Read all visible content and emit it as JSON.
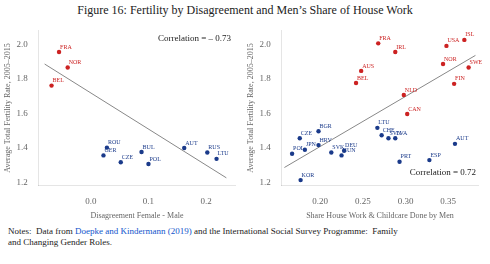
{
  "title": "Figure 16: Fertility by Disagreement and Men’s Share of House Work",
  "notes": [
    {
      "text": "Notes:  Data from "
    },
    {
      "text": "Doepke and Kindermann (2019)",
      "color": "#1155cc"
    },
    {
      "text": " and the International Social Survey Programme:  Family\nand Changing Gender Roles."
    }
  ],
  "chart_data": [
    {
      "type": "scatter",
      "xlabel": "Disagreement Female - Male",
      "ylabel": "Average Total Fertility Rate, 2005–2015",
      "xlim": [
        -0.09,
        0.25
      ],
      "ylim": [
        1.18,
        2.08
      ],
      "xticks": [
        {
          "value": 0.0,
          "label": "0.0"
        },
        0.1,
        0.2
      ],
      "yticks": [
        1.2,
        1.4,
        1.6,
        1.8,
        {
          "value": 2.0,
          "label": "2.0"
        }
      ],
      "grid": false,
      "annotations": [
        {
          "text": "Correlation = – 0.73"
        }
      ],
      "series": [
        {
          "type": "line",
          "color": "#888888",
          "x": [
            -0.08,
            0.235
          ],
          "values": [
            1.885,
            1.225
          ]
        },
        {
          "color": "#cc2222",
          "x": [
            -0.055,
            -0.04,
            -0.068
          ],
          "values": [
            1.955,
            1.865,
            1.76
          ],
          "labels": [
            "FRA",
            "NOR",
            "BEL"
          ]
        },
        {
          "color": "#1a3a8a",
          "x": [
            0.028,
            0.022,
            0.052,
            0.088,
            0.1,
            0.162,
            0.202,
            0.218
          ],
          "values": [
            1.4,
            1.355,
            1.315,
            1.375,
            1.305,
            1.398,
            1.372,
            1.335
          ],
          "labels": [
            "ROU",
            "GER",
            "CZE",
            "BUL",
            "POL",
            "AUT",
            "RUS",
            "LTU"
          ]
        }
      ]
    },
    {
      "type": "scatter",
      "xlabel": "Share House Work & Childcare Done by Men",
      "ylabel": "Average Total Fertility Rate, 2005–2015",
      "xlim": [
        0.155,
        0.385
      ],
      "ylim": [
        1.18,
        2.08
      ],
      "xticks": [
        {
          "value": 0.2,
          "label": "0.20"
        },
        {
          "value": 0.25,
          "label": "0.25"
        },
        {
          "value": 0.3,
          "label": "0.30"
        },
        {
          "value": 0.35,
          "label": "0.35"
        }
      ],
      "yticks": [
        1.2,
        1.4,
        1.6,
        1.8,
        {
          "value": 2.0,
          "label": "2.0"
        }
      ],
      "grid": false,
      "annotations": [
        {
          "text": "Correlation = 0.72"
        }
      ],
      "series": [
        {
          "type": "line",
          "color": "#888888",
          "x": [
            0.158,
            0.382
          ],
          "values": [
            1.285,
            1.935
          ]
        },
        {
          "color": "#cc2222",
          "x": [
            0.268,
            0.288,
            0.369,
            0.348,
            0.344,
            0.374,
            0.357,
            0.248,
            0.242,
            0.298,
            0.302
          ],
          "values": [
            2.005,
            1.955,
            2.025,
            1.99,
            1.885,
            1.865,
            1.77,
            1.845,
            1.775,
            1.705,
            1.595
          ],
          "labels": [
            "FRA",
            "IRL",
            "ISL",
            "USA",
            "NOR",
            "SWE",
            "FIN",
            "AUS",
            "BEL",
            "NLD",
            "CAN"
          ]
        },
        {
          "color": "#1a3a8a",
          "x": [
            0.176,
            0.198,
            0.198,
            0.267,
            0.272,
            0.28,
            0.288,
            0.182,
            0.213,
            0.228,
            0.225,
            0.167,
            0.293,
            0.328,
            0.358,
            0.177
          ],
          "values": [
            1.455,
            1.495,
            1.415,
            1.515,
            1.472,
            1.455,
            1.455,
            1.388,
            1.372,
            1.382,
            1.355,
            1.365,
            1.318,
            1.328,
            1.422,
            1.212
          ],
          "labels": [
            "CZE",
            "BGR",
            "HRV",
            "LTU",
            "CHE",
            "SVN",
            "LVA",
            "JPN",
            "SVK",
            "DEU",
            "HUN",
            "POL",
            "PRT",
            "ESP",
            "AUT",
            "KOR"
          ]
        }
      ]
    }
  ]
}
